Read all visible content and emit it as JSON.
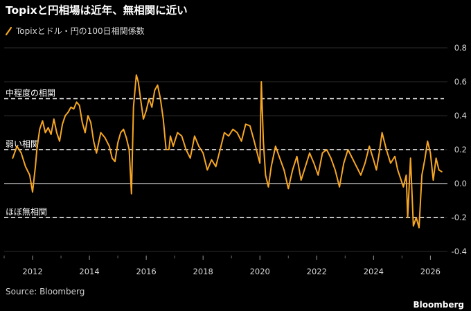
{
  "header": {
    "title": "Topixと円相場は近年、無相関に近い"
  },
  "legend": {
    "items": [
      {
        "label": "Topixとドル・円の100日相関係数",
        "color": "#f6a623"
      }
    ]
  },
  "footer": {
    "source": "Source: Bloomberg",
    "brand": "Bloomberg"
  },
  "colors": {
    "background": "#000000",
    "line": "#f6a623",
    "grid": "#3a3a3a",
    "zero": "#ffffff",
    "reference": "#ffffff"
  },
  "chart_data": {
    "type": "line",
    "title": "Topixと円相場は近年、無相関に近い",
    "xlabel": "",
    "ylabel": "",
    "xlim": [
      2011.0,
      2026.6
    ],
    "ylim": [
      -0.4,
      0.8
    ],
    "yticks": [
      -0.4,
      -0.2,
      0.0,
      0.2,
      0.4,
      0.6,
      0.8
    ],
    "ytick_labels": [
      "-0.4",
      "-0.2",
      "0.0",
      "0.2",
      "0.4",
      "0.6",
      "0.8"
    ],
    "xticks": [
      2012,
      2014,
      2016,
      2018,
      2020,
      2022,
      2024,
      2026
    ],
    "xtick_labels": [
      "2012",
      "2014",
      "2016",
      "2018",
      "2020",
      "2022",
      "2024",
      "2026"
    ],
    "grid": "horizontal",
    "legend_position": "top-left",
    "reference_lines": [
      {
        "y": 0.5,
        "label": "中程度の相関",
        "style": "dashed"
      },
      {
        "y": 0.2,
        "label": "弱い相関",
        "style": "dashed"
      },
      {
        "y": -0.2,
        "label": "ほぼ無相関",
        "style": "dashed"
      }
    ],
    "series": [
      {
        "name": "Topixとドル・円の100日相関係数",
        "x": [
          2011.3,
          2011.45,
          2011.6,
          2011.75,
          2011.9,
          2012.0,
          2012.1,
          2012.15,
          2012.25,
          2012.35,
          2012.45,
          2012.55,
          2012.65,
          2012.75,
          2012.85,
          2012.95,
          2013.05,
          2013.15,
          2013.25,
          2013.35,
          2013.45,
          2013.55,
          2013.65,
          2013.75,
          2013.85,
          2013.95,
          2014.05,
          2014.15,
          2014.25,
          2014.4,
          2014.55,
          2014.7,
          2014.8,
          2014.9,
          2015.0,
          2015.1,
          2015.2,
          2015.3,
          2015.4,
          2015.48,
          2015.55,
          2015.65,
          2015.72,
          2015.8,
          2015.9,
          2016.0,
          2016.1,
          2016.2,
          2016.3,
          2016.4,
          2016.5,
          2016.6,
          2016.7,
          2016.8,
          2016.85,
          2016.95,
          2017.1,
          2017.25,
          2017.4,
          2017.55,
          2017.7,
          2017.85,
          2018.0,
          2018.15,
          2018.3,
          2018.45,
          2018.6,
          2018.75,
          2018.9,
          2019.05,
          2019.2,
          2019.35,
          2019.5,
          2019.65,
          2019.8,
          2019.95,
          2020.0,
          2020.05,
          2020.12,
          2020.2,
          2020.3,
          2020.4,
          2020.55,
          2020.7,
          2020.85,
          2021.0,
          2021.15,
          2021.3,
          2021.45,
          2021.6,
          2021.75,
          2021.9,
          2022.05,
          2022.2,
          2022.35,
          2022.5,
          2022.65,
          2022.8,
          2022.95,
          2023.1,
          2023.25,
          2023.4,
          2023.55,
          2023.7,
          2023.85,
          2024.0,
          2024.1,
          2024.2,
          2024.3,
          2024.45,
          2024.6,
          2024.75,
          2024.85,
          2024.95,
          2025.05,
          2025.15,
          2025.2,
          2025.3,
          2025.4,
          2025.5,
          2025.6,
          2025.7,
          2025.8,
          2025.9,
          2026.0,
          2026.1,
          2026.2,
          2026.3,
          2026.4
        ],
        "values": [
          0.15,
          0.22,
          0.18,
          0.1,
          0.05,
          -0.05,
          0.1,
          0.2,
          0.32,
          0.37,
          0.3,
          0.33,
          0.29,
          0.38,
          0.3,
          0.25,
          0.35,
          0.4,
          0.42,
          0.45,
          0.44,
          0.48,
          0.46,
          0.36,
          0.3,
          0.4,
          0.36,
          0.25,
          0.18,
          0.3,
          0.27,
          0.22,
          0.15,
          0.13,
          0.24,
          0.3,
          0.32,
          0.27,
          0.2,
          -0.06,
          0.45,
          0.64,
          0.6,
          0.5,
          0.38,
          0.43,
          0.5,
          0.45,
          0.55,
          0.58,
          0.5,
          0.38,
          0.2,
          0.2,
          0.28,
          0.22,
          0.3,
          0.28,
          0.2,
          0.15,
          0.28,
          0.22,
          0.18,
          0.08,
          0.14,
          0.1,
          0.2,
          0.3,
          0.28,
          0.32,
          0.3,
          0.25,
          0.35,
          0.34,
          0.25,
          0.15,
          0.12,
          0.6,
          0.25,
          0.05,
          -0.02,
          0.1,
          0.22,
          0.15,
          0.08,
          -0.03,
          0.08,
          0.16,
          0.02,
          0.1,
          0.18,
          0.12,
          0.05,
          0.18,
          0.2,
          0.15,
          0.08,
          -0.02,
          0.12,
          0.2,
          0.15,
          0.1,
          0.05,
          0.12,
          0.22,
          0.14,
          0.08,
          0.18,
          0.3,
          0.2,
          0.12,
          0.16,
          0.08,
          0.03,
          -0.02,
          0.05,
          -0.2,
          0.15,
          -0.25,
          -0.2,
          -0.26,
          0.05,
          0.14,
          0.25,
          0.18,
          0.02,
          0.15,
          0.08,
          0.07
        ]
      }
    ]
  }
}
